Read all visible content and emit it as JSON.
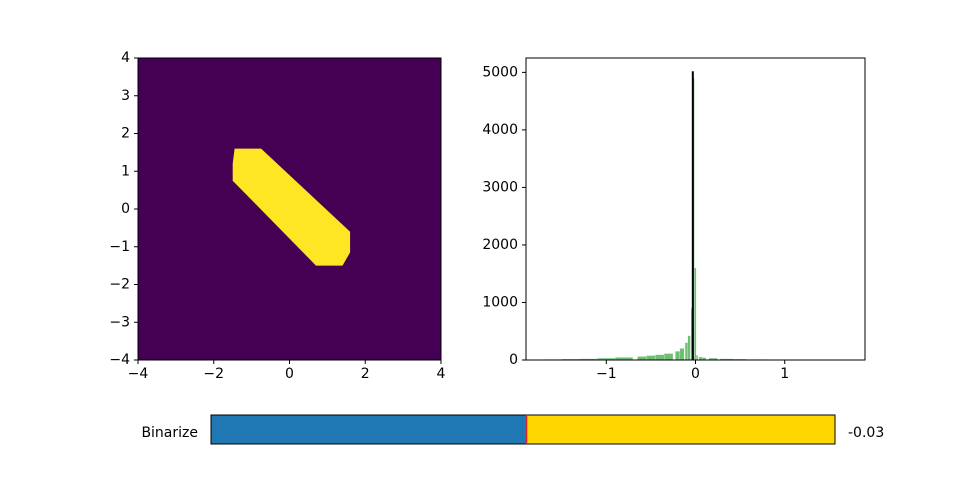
{
  "colors": {
    "background": "#440154",
    "mask": "#fde725",
    "hist": "#6fbf73",
    "threshold_line": "#000000",
    "slider_left": "#1f77b4",
    "slider_right": "#ffd700",
    "slider_handle": "#d62728"
  },
  "chart_data": [
    {
      "type": "heatmap",
      "xlim": [
        -4,
        4
      ],
      "ylim": [
        -4,
        4
      ],
      "x_ticks": [
        -4,
        -2,
        0,
        2,
        4
      ],
      "y_ticks": [
        -4,
        -3,
        -2,
        -1,
        0,
        1,
        2,
        3,
        4
      ],
      "x_tick_labels": [
        "−4",
        "−2",
        "0",
        "2",
        "4"
      ],
      "y_tick_labels": [
        "−4",
        "−3",
        "−2",
        "−1",
        "0",
        "1",
        "2",
        "3",
        "4"
      ],
      "grid": false,
      "binary_mask": {
        "shape": "tilted capsule",
        "values": [
          0,
          1
        ],
        "outline": [
          [
            -1.45,
            1.6
          ],
          [
            -0.75,
            1.6
          ],
          [
            1.6,
            -0.6
          ],
          [
            1.6,
            -1.15
          ],
          [
            1.4,
            -1.5
          ],
          [
            0.7,
            -1.5
          ],
          [
            -1.5,
            0.75
          ],
          [
            -1.5,
            1.2
          ]
        ]
      }
    },
    {
      "type": "bar",
      "subtype": "histogram",
      "xlim": [
        -1.9,
        1.9
      ],
      "ylim": [
        0,
        5250
      ],
      "x_ticks": [
        -1,
        0,
        1
      ],
      "x_tick_labels": [
        "−1",
        "0",
        "1"
      ],
      "y_ticks": [
        0,
        1000,
        2000,
        3000,
        4000,
        5000
      ],
      "y_tick_labels": [
        "0",
        "1000",
        "2000",
        "3000",
        "4000",
        "5000"
      ],
      "grid": false,
      "bins": [
        {
          "x": -1.8,
          "count": 5
        },
        {
          "x": -1.6,
          "count": 10
        },
        {
          "x": -1.4,
          "count": 15
        },
        {
          "x": -1.2,
          "count": 20
        },
        {
          "x": -1.0,
          "count": 30
        },
        {
          "x": -0.8,
          "count": 45
        },
        {
          "x": -0.6,
          "count": 60
        },
        {
          "x": -0.5,
          "count": 75
        },
        {
          "x": -0.4,
          "count": 90
        },
        {
          "x": -0.3,
          "count": 110
        },
        {
          "x": -0.2,
          "count": 150
        },
        {
          "x": -0.15,
          "count": 200
        },
        {
          "x": -0.1,
          "count": 300
        },
        {
          "x": -0.07,
          "count": 420
        },
        {
          "x": -0.04,
          "count": 900
        },
        {
          "x": -0.02,
          "count": 4900
        },
        {
          "x": 0.0,
          "count": 1600
        },
        {
          "x": 0.02,
          "count": 80
        },
        {
          "x": 0.06,
          "count": 50
        },
        {
          "x": 0.1,
          "count": 40
        },
        {
          "x": 0.2,
          "count": 30
        },
        {
          "x": 0.35,
          "count": 20
        },
        {
          "x": 0.5,
          "count": 15
        },
        {
          "x": 0.7,
          "count": 10
        },
        {
          "x": 0.9,
          "count": 8
        },
        {
          "x": 1.1,
          "count": 6
        },
        {
          "x": 1.3,
          "count": 5
        },
        {
          "x": 1.5,
          "count": 4
        }
      ],
      "threshold": {
        "x": -0.03,
        "y_top": 5020
      }
    }
  ],
  "slider": {
    "label": "Binarize",
    "value": -0.03,
    "value_text": "-0.03",
    "min": -1.8,
    "max": 1.7
  }
}
